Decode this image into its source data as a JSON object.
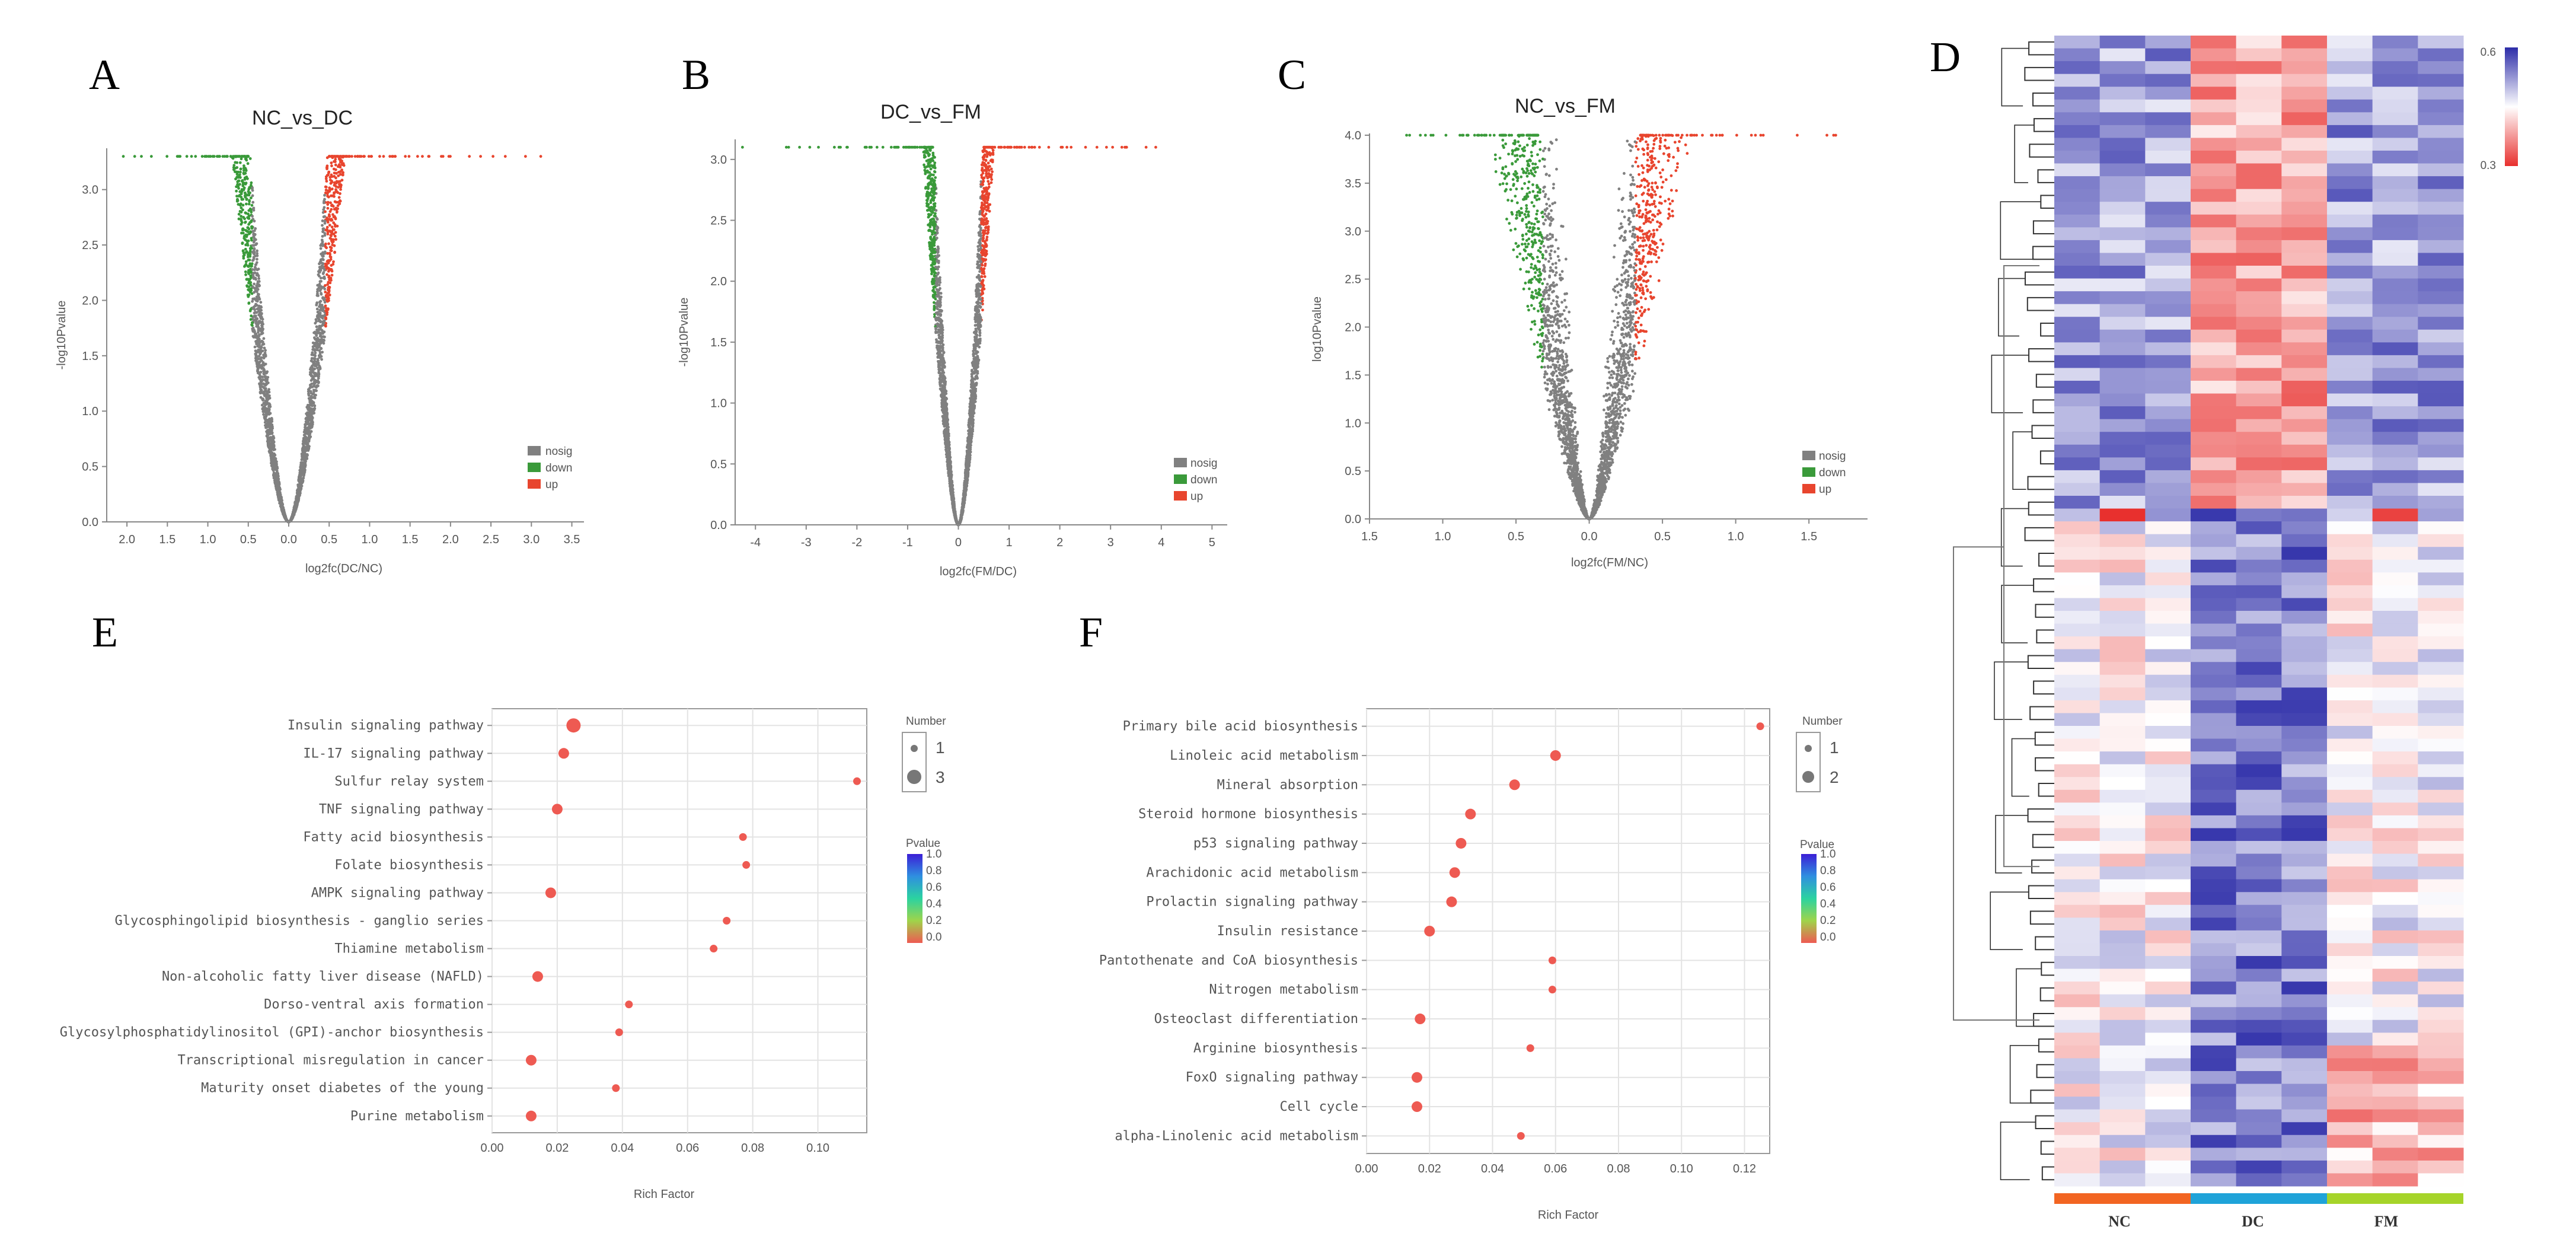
{
  "figure": {
    "panel_labels": [
      "A",
      "B",
      "C",
      "D",
      "E",
      "F"
    ],
    "colors": {
      "nosig": "#808080",
      "down": "#3a9a3a",
      "up": "#e8452e",
      "hot": "#d62f2f",
      "cold": "#2c2ca8",
      "dot": "#ee5a52"
    }
  },
  "chart_data": [
    {
      "id": "A",
      "type": "scatter",
      "title": "NC_vs_DC",
      "xlabel": "log2fc(DC/NC)",
      "ylabel": "-log10Pvalue",
      "xticks": [
        "2.0",
        "1.5",
        "1.0",
        "0.5",
        "0.0",
        "0.5",
        "1.0",
        "1.5",
        "2.0",
        "2.5",
        "3.0",
        "3.5"
      ],
      "xtick_values": [
        -2.0,
        -1.5,
        -1.0,
        -0.5,
        0,
        0.5,
        1.0,
        1.5,
        2.0,
        2.5,
        3.0,
        3.5
      ],
      "yticks": [
        "0.0",
        "0.5",
        "1.0",
        "1.5",
        "2.0",
        "2.5",
        "3.0"
      ],
      "ylim": [
        0,
        3.4
      ],
      "xlim": [
        -2.25,
        3.65
      ],
      "cap": 3.3,
      "sig_threshold": 1.3,
      "fc_threshold": 0.5,
      "spread": 0.35,
      "legend": [
        "nosig",
        "down",
        "up"
      ]
    },
    {
      "id": "B",
      "type": "scatter",
      "title": "DC_vs_FM",
      "xlabel": "log2fc(FM/DC)",
      "ylabel": "-log10Pvalue",
      "xticks": [
        "-4",
        "-3",
        "-2",
        "-1",
        "0",
        "1",
        "2",
        "3",
        "4",
        "5"
      ],
      "xtick_values": [
        -4,
        -3,
        -2,
        -1,
        0,
        1,
        2,
        3,
        4,
        5
      ],
      "yticks": [
        "0.0",
        "0.5",
        "1.0",
        "1.5",
        "2.0",
        "2.5",
        "3.0"
      ],
      "ylim": [
        0,
        3.15
      ],
      "xlim": [
        -4.4,
        5.3
      ],
      "cap": 3.1,
      "sig_threshold": 1.3,
      "fc_threshold": 0.5,
      "spread": 0.35,
      "legend": [
        "nosig",
        "down",
        "up"
      ]
    },
    {
      "id": "C",
      "type": "scatter",
      "title": "NC_vs_FM",
      "xlabel": "log2fc(FM/NC)",
      "ylabel": "log10Pvalue",
      "xticks": [
        "1.5",
        "1.0",
        "0.5",
        "0.0",
        "0.5",
        "1.0",
        "1.5"
      ],
      "xtick_values": [
        -1.5,
        -1.0,
        -0.5,
        0,
        0.5,
        1.0,
        1.5
      ],
      "yticks": [
        "0.0",
        "0.5",
        "1.0",
        "1.5",
        "2.0",
        "2.5",
        "3.0",
        "3.5",
        "4.0"
      ],
      "ylim": [
        0,
        4.0
      ],
      "xlim": [
        -1.5,
        1.9
      ],
      "cap": 4.0,
      "sig_threshold": 1.3,
      "fc_threshold": 0.35,
      "spread": 0.18,
      "legend": [
        "nosig",
        "down",
        "up"
      ]
    },
    {
      "id": "D",
      "type": "heatmap",
      "groups": [
        "NC",
        "DC",
        "FM"
      ],
      "group_colors": [
        "#f26522",
        "#1fa3d9",
        "#a6d42a"
      ],
      "scale_labels": [
        "0.6",
        "0.3"
      ],
      "n_rows": 90,
      "n_cols": 9
    },
    {
      "id": "E",
      "type": "scatter",
      "xlabel": "Rich Factor",
      "xticks": [
        "0.00",
        "0.02",
        "0.04",
        "0.06",
        "0.08",
        "0.10"
      ],
      "xtick_values": [
        0,
        0.02,
        0.04,
        0.06,
        0.08,
        0.1
      ],
      "xlim": [
        0,
        0.115
      ],
      "legend_number_title": "Number",
      "legend_number": [
        "1",
        "3"
      ],
      "legend_pvalue_title": "Pvalue",
      "legend_pvalue": [
        "1.0",
        "0.8",
        "0.6",
        "0.4",
        "0.2",
        "0.0"
      ],
      "pathways": [
        {
          "name": "Insulin signaling pathway",
          "rich": 0.025,
          "number": 3
        },
        {
          "name": "IL-17 signaling pathway",
          "rich": 0.022,
          "number": 2
        },
        {
          "name": "Sulfur relay system",
          "rich": 0.112,
          "number": 1
        },
        {
          "name": "TNF signaling pathway",
          "rich": 0.02,
          "number": 2
        },
        {
          "name": "Fatty acid biosynthesis",
          "rich": 0.077,
          "number": 1
        },
        {
          "name": "Folate biosynthesis",
          "rich": 0.078,
          "number": 1
        },
        {
          "name": "AMPK signaling pathway",
          "rich": 0.018,
          "number": 2
        },
        {
          "name": "Glycosphingolipid biosynthesis - ganglio series",
          "rich": 0.072,
          "number": 1
        },
        {
          "name": "Thiamine metabolism",
          "rich": 0.068,
          "number": 1
        },
        {
          "name": "Non-alcoholic fatty liver disease (NAFLD)",
          "rich": 0.014,
          "number": 2
        },
        {
          "name": "Dorso-ventral axis formation",
          "rich": 0.042,
          "number": 1
        },
        {
          "name": "Glycosylphosphatidylinositol (GPI)-anchor biosynthesis",
          "rich": 0.039,
          "number": 1
        },
        {
          "name": "Transcriptional misregulation in cancer",
          "rich": 0.012,
          "number": 2
        },
        {
          "name": "Maturity onset diabetes of the young",
          "rich": 0.038,
          "number": 1
        },
        {
          "name": "Purine metabolism",
          "rich": 0.012,
          "number": 2
        }
      ]
    },
    {
      "id": "F",
      "type": "scatter",
      "xlabel": "Rich Factor",
      "xticks": [
        "0.00",
        "0.02",
        "0.04",
        "0.06",
        "0.08",
        "0.10",
        "0.12"
      ],
      "xtick_values": [
        0,
        0.02,
        0.04,
        0.06,
        0.08,
        0.1,
        0.12
      ],
      "xlim": [
        0,
        0.128
      ],
      "legend_number_title": "Number",
      "legend_number": [
        "1",
        "2"
      ],
      "legend_pvalue_title": "Pvalue",
      "legend_pvalue": [
        "1.0",
        "0.8",
        "0.6",
        "0.4",
        "0.2",
        "0.0"
      ],
      "pathways": [
        {
          "name": "Primary bile acid biosynthesis",
          "rich": 0.125,
          "number": 1
        },
        {
          "name": "Linoleic acid metabolism",
          "rich": 0.06,
          "number": 2
        },
        {
          "name": "Mineral absorption",
          "rich": 0.047,
          "number": 2
        },
        {
          "name": "Steroid hormone biosynthesis",
          "rich": 0.033,
          "number": 2
        },
        {
          "name": "p53 signaling pathway",
          "rich": 0.03,
          "number": 2
        },
        {
          "name": "Arachidonic acid metabolism",
          "rich": 0.028,
          "number": 2
        },
        {
          "name": "Prolactin signaling pathway",
          "rich": 0.027,
          "number": 2
        },
        {
          "name": "Insulin resistance",
          "rich": 0.02,
          "number": 2
        },
        {
          "name": "Pantothenate and CoA biosynthesis",
          "rich": 0.059,
          "number": 1
        },
        {
          "name": "Nitrogen metabolism",
          "rich": 0.059,
          "number": 1
        },
        {
          "name": "Osteoclast differentiation",
          "rich": 0.017,
          "number": 2
        },
        {
          "name": "Arginine biosynthesis",
          "rich": 0.052,
          "number": 1
        },
        {
          "name": "FoxO signaling pathway",
          "rich": 0.016,
          "number": 2
        },
        {
          "name": "Cell cycle",
          "rich": 0.016,
          "number": 2
        },
        {
          "name": "alpha-Linolenic acid metabolism",
          "rich": 0.049,
          "number": 1
        }
      ]
    }
  ]
}
